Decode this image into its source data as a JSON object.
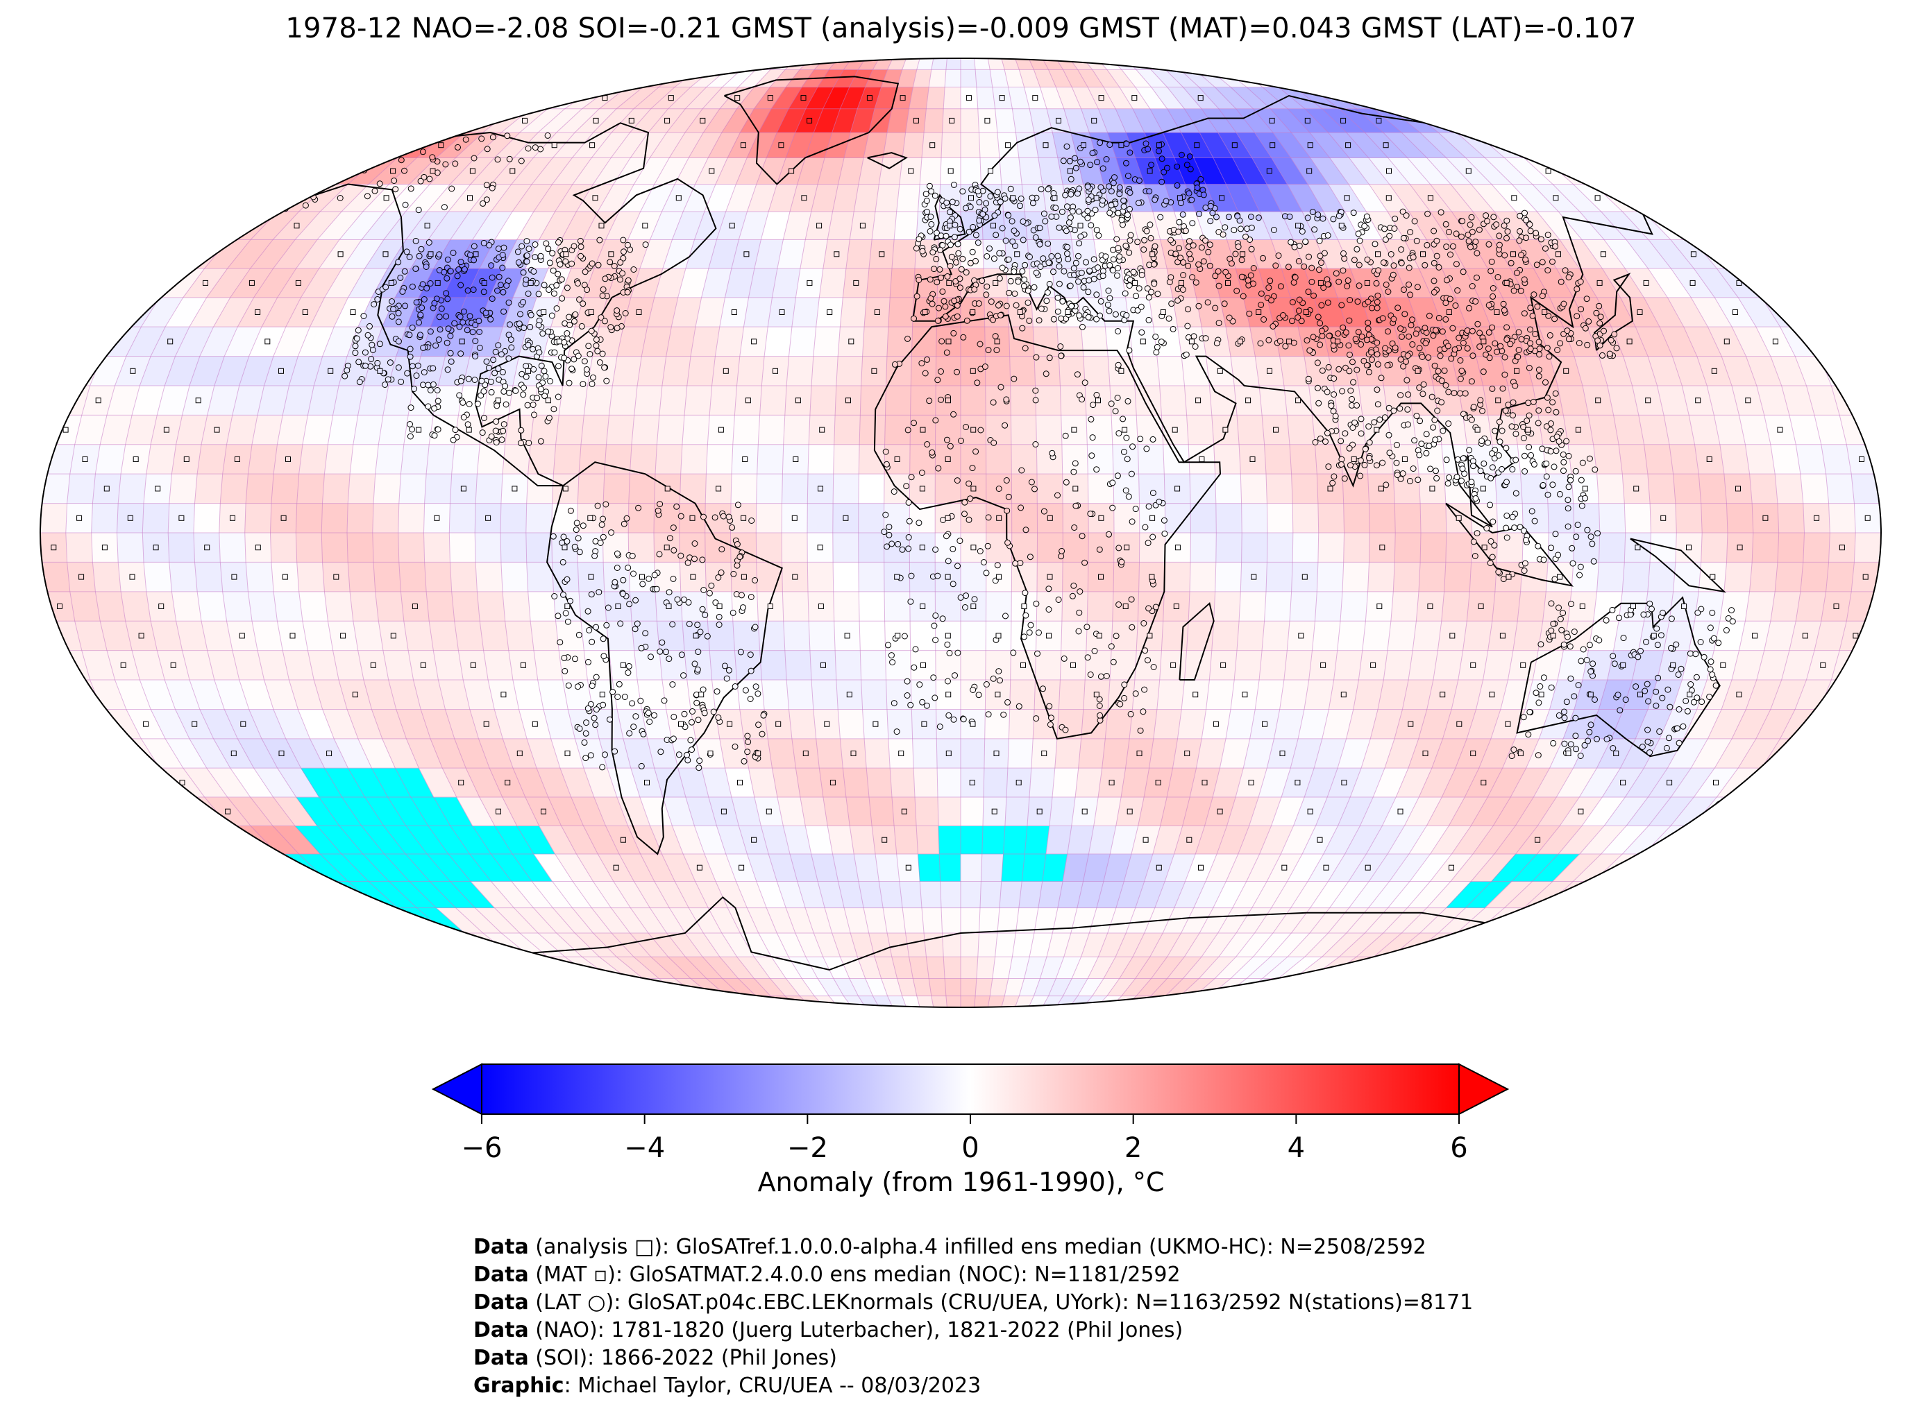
{
  "title": "1978-12 NAO=-2.08 SOI=-0.21 GMST (analysis)=-0.009 GMST (MAT)=0.043 GMST (LAT)=-0.107",
  "colorbar": {
    "label": "Anomaly (from 1961-1990), °C",
    "ticks": [
      "−6",
      "−4",
      "−2",
      "0",
      "2",
      "4",
      "6"
    ],
    "min": -6,
    "max": 6,
    "colors": {
      "low": "#0000ff",
      "mid": "#ffffff",
      "high": "#ff0000"
    }
  },
  "map": {
    "projection": "robinson",
    "grid_resolution_deg": 5,
    "missing_color": "#00ffff",
    "anomaly_regions": [
      {
        "name": "greenland",
        "value": 5.6
      },
      {
        "name": "siberia",
        "value": -5.8
      },
      {
        "name": "north-america",
        "value": -3.5
      },
      {
        "name": "alaska",
        "value": 3.0
      },
      {
        "name": "central-asia",
        "value": 2.6
      },
      {
        "name": "australia",
        "value": -1.5
      }
    ]
  },
  "credits": [
    {
      "head": "Data",
      "text": " (analysis □): GloSATref.1.0.0.0-alpha.4 infilled ens median (UKMO-HC): N=2508/2592"
    },
    {
      "head": "Data",
      "text": " (MAT ▫): GloSATMAT.2.4.0.0 ens median (NOC): N=1181/2592"
    },
    {
      "head": "Data",
      "text": " (LAT ○): GloSAT.p04c.EBC.LEKnormals (CRU/UEA, UYork): N=1163/2592 N(stations)=8171"
    },
    {
      "head": "Data",
      "text": " (NAO): 1781-1820 (Juerg Luterbacher), 1821-2022 (Phil Jones)"
    },
    {
      "head": "Data",
      "text": " (SOI): 1866-2022 (Phil Jones)"
    },
    {
      "head": "Graphic",
      "text": ": Michael Taylor, CRU/UEA -- 08/03/2023"
    }
  ]
}
